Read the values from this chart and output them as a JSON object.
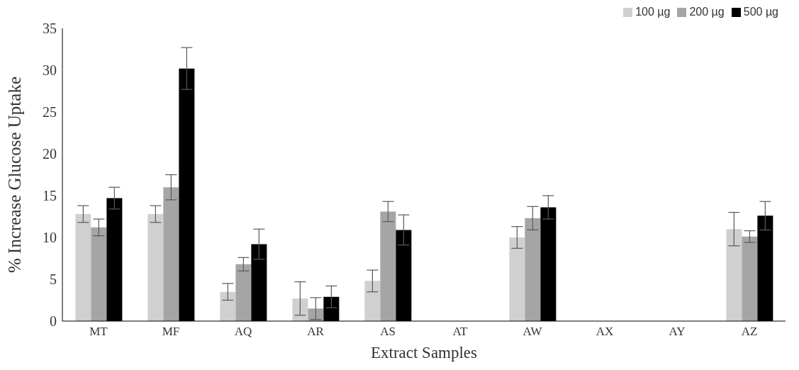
{
  "chart_data": {
    "type": "bar",
    "xlabel": "Extract Samples",
    "ylabel": "% Increase Glucose Uptake",
    "categories": [
      "MT",
      "MF",
      "AQ",
      "AR",
      "AS",
      "AT",
      "AW",
      "AX",
      "AY",
      "AZ"
    ],
    "series": [
      {
        "name": "100 µg",
        "color": "#d0d0d0",
        "values": [
          12.8,
          12.8,
          3.5,
          2.7,
          4.8,
          0,
          10.0,
          0,
          0,
          11.0
        ],
        "errors": [
          1.0,
          1.0,
          1.0,
          2.0,
          1.3,
          0,
          1.3,
          0,
          0,
          2.0
        ]
      },
      {
        "name": "200 µg",
        "color": "#a5a5a5",
        "values": [
          11.2,
          16.0,
          6.8,
          1.5,
          13.1,
          0,
          12.3,
          0,
          0,
          10.1
        ],
        "errors": [
          1.0,
          1.5,
          0.8,
          1.3,
          1.2,
          0,
          1.4,
          0,
          0,
          0.7
        ]
      },
      {
        "name": "500 µg",
        "color": "#000000",
        "values": [
          14.7,
          30.2,
          9.2,
          2.9,
          10.9,
          0,
          13.6,
          0,
          0,
          12.6
        ],
        "errors": [
          1.3,
          2.5,
          1.8,
          1.3,
          1.8,
          0,
          1.4,
          0,
          0,
          1.7
        ]
      }
    ],
    "ylim": [
      0,
      35
    ],
    "yticks": [
      0,
      5,
      10,
      15,
      20,
      25,
      30,
      35
    ],
    "grid": false,
    "legend": "top right"
  }
}
